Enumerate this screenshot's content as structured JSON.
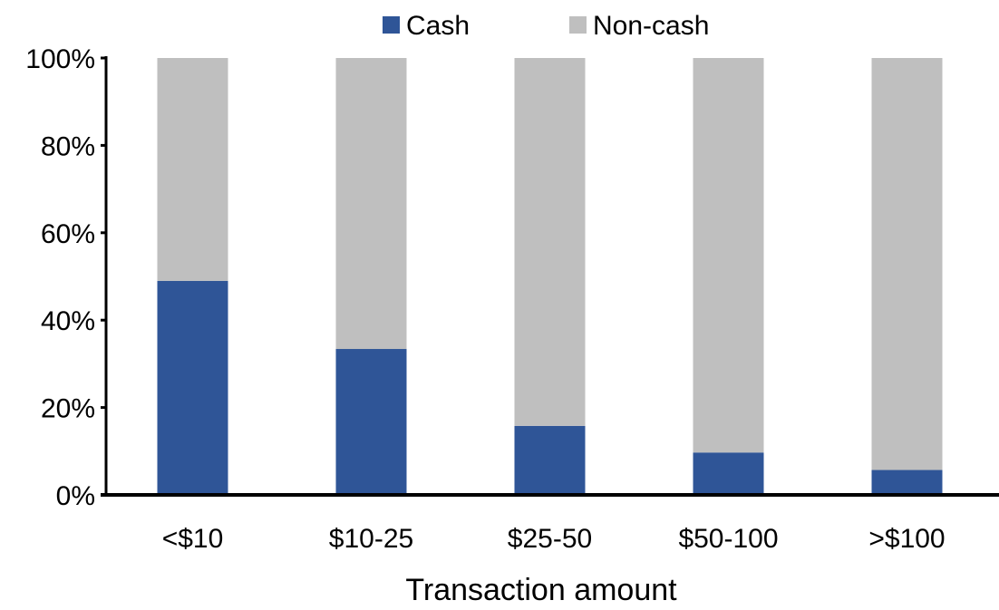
{
  "chart_data": {
    "type": "bar",
    "stacked": true,
    "title": "",
    "xlabel": "Transaction amount",
    "ylabel": "",
    "ylim": [
      0,
      100
    ],
    "yticks": [
      "0%",
      "20%",
      "40%",
      "60%",
      "80%",
      "100%"
    ],
    "categories": [
      "<$10",
      "$10-25",
      "$25-50",
      "$50-100",
      ">$100"
    ],
    "series": [
      {
        "name": "Cash",
        "color": "#2F5597",
        "values": [
          49,
          33.4,
          15.8,
          9.7,
          5.7
        ]
      },
      {
        "name": "Non-cash",
        "color": "#BFBFBF",
        "values": [
          51,
          66.6,
          84.2,
          90.3,
          94.3
        ]
      }
    ],
    "legend_position": "top",
    "grid": false
  }
}
